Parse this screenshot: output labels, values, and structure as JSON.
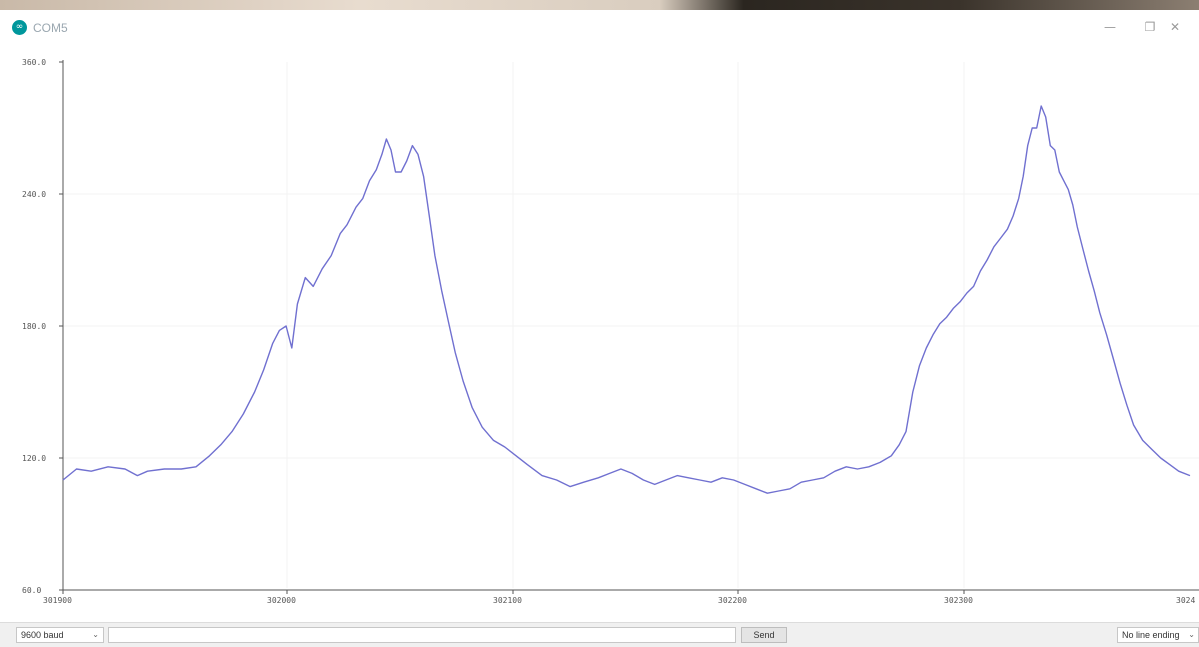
{
  "window": {
    "title": "COM5",
    "app_icon_glyph": "∞",
    "minimize_glyph": "—",
    "maximize_glyph": "❐",
    "close_glyph": "✕"
  },
  "plotter": {
    "line_color": "#7070d0",
    "y_ticks": [
      "360.0",
      "240.0",
      "180.0",
      "120.0",
      "60.0"
    ],
    "x_ticks": [
      "301900",
      "302000",
      "302100",
      "302200",
      "302300",
      "3024"
    ]
  },
  "chart_data": {
    "type": "line",
    "ylim": [
      60,
      300
    ],
    "xlim": [
      0,
      1
    ],
    "series": [
      {
        "values": [
          [
            0.0,
            110
          ],
          [
            0.012,
            115
          ],
          [
            0.025,
            114
          ],
          [
            0.04,
            116
          ],
          [
            0.055,
            115
          ],
          [
            0.066,
            112
          ],
          [
            0.075,
            114
          ],
          [
            0.09,
            115
          ],
          [
            0.105,
            115
          ],
          [
            0.118,
            116
          ],
          [
            0.13,
            121
          ],
          [
            0.14,
            126
          ],
          [
            0.15,
            132
          ],
          [
            0.16,
            140
          ],
          [
            0.17,
            150
          ],
          [
            0.178,
            160
          ],
          [
            0.186,
            172
          ],
          [
            0.192,
            178
          ],
          [
            0.198,
            180
          ],
          [
            0.203,
            170
          ],
          [
            0.208,
            190
          ],
          [
            0.215,
            202
          ],
          [
            0.222,
            198
          ],
          [
            0.23,
            206
          ],
          [
            0.238,
            212
          ],
          [
            0.246,
            222
          ],
          [
            0.252,
            226
          ],
          [
            0.26,
            234
          ],
          [
            0.266,
            238
          ],
          [
            0.272,
            246
          ],
          [
            0.278,
            251
          ],
          [
            0.283,
            258
          ],
          [
            0.287,
            265
          ],
          [
            0.291,
            260
          ],
          [
            0.295,
            250
          ],
          [
            0.3,
            250
          ],
          [
            0.305,
            255
          ],
          [
            0.31,
            262
          ],
          [
            0.315,
            258
          ],
          [
            0.32,
            248
          ],
          [
            0.325,
            230
          ],
          [
            0.33,
            212
          ],
          [
            0.336,
            196
          ],
          [
            0.342,
            182
          ],
          [
            0.348,
            168
          ],
          [
            0.355,
            155
          ],
          [
            0.363,
            143
          ],
          [
            0.372,
            134
          ],
          [
            0.382,
            128
          ],
          [
            0.392,
            125
          ],
          [
            0.402,
            121
          ],
          [
            0.412,
            117
          ],
          [
            0.425,
            112
          ],
          [
            0.438,
            110
          ],
          [
            0.45,
            107
          ],
          [
            0.462,
            109
          ],
          [
            0.475,
            111
          ],
          [
            0.485,
            113
          ],
          [
            0.495,
            115
          ],
          [
            0.505,
            113
          ],
          [
            0.515,
            110
          ],
          [
            0.525,
            108
          ],
          [
            0.535,
            110
          ],
          [
            0.545,
            112
          ],
          [
            0.555,
            111
          ],
          [
            0.565,
            110
          ],
          [
            0.575,
            109
          ],
          [
            0.585,
            111
          ],
          [
            0.595,
            110
          ],
          [
            0.605,
            108
          ],
          [
            0.615,
            106
          ],
          [
            0.625,
            104
          ],
          [
            0.635,
            105
          ],
          [
            0.645,
            106
          ],
          [
            0.655,
            109
          ],
          [
            0.665,
            110
          ],
          [
            0.675,
            111
          ],
          [
            0.685,
            114
          ],
          [
            0.695,
            116
          ],
          [
            0.705,
            115
          ],
          [
            0.715,
            116
          ],
          [
            0.725,
            118
          ],
          [
            0.735,
            121
          ],
          [
            0.742,
            126
          ],
          [
            0.748,
            132
          ],
          [
            0.754,
            150
          ],
          [
            0.76,
            162
          ],
          [
            0.766,
            170
          ],
          [
            0.772,
            176
          ],
          [
            0.778,
            181
          ],
          [
            0.784,
            184
          ],
          [
            0.79,
            188
          ],
          [
            0.796,
            191
          ],
          [
            0.802,
            195
          ],
          [
            0.808,
            198
          ],
          [
            0.814,
            205
          ],
          [
            0.82,
            210
          ],
          [
            0.826,
            216
          ],
          [
            0.832,
            220
          ],
          [
            0.838,
            224
          ],
          [
            0.843,
            230
          ],
          [
            0.848,
            238
          ],
          [
            0.852,
            248
          ],
          [
            0.856,
            262
          ],
          [
            0.86,
            270
          ],
          [
            0.864,
            270
          ],
          [
            0.868,
            280
          ],
          [
            0.872,
            275
          ],
          [
            0.876,
            262
          ],
          [
            0.88,
            260
          ],
          [
            0.884,
            250
          ],
          [
            0.888,
            246
          ],
          [
            0.892,
            242
          ],
          [
            0.896,
            235
          ],
          [
            0.9,
            225
          ],
          [
            0.905,
            215
          ],
          [
            0.91,
            205
          ],
          [
            0.915,
            196
          ],
          [
            0.92,
            186
          ],
          [
            0.926,
            176
          ],
          [
            0.932,
            165
          ],
          [
            0.938,
            154
          ],
          [
            0.944,
            144
          ],
          [
            0.95,
            135
          ],
          [
            0.958,
            128
          ],
          [
            0.966,
            124
          ],
          [
            0.974,
            120
          ],
          [
            0.982,
            117
          ],
          [
            0.99,
            114
          ],
          [
            1.0,
            112
          ]
        ]
      }
    ]
  },
  "bottom_bar": {
    "baud_label": "9600 baud",
    "send_label": "Send",
    "line_ending_label": "No line ending",
    "chevron_glyph": "⌄"
  }
}
